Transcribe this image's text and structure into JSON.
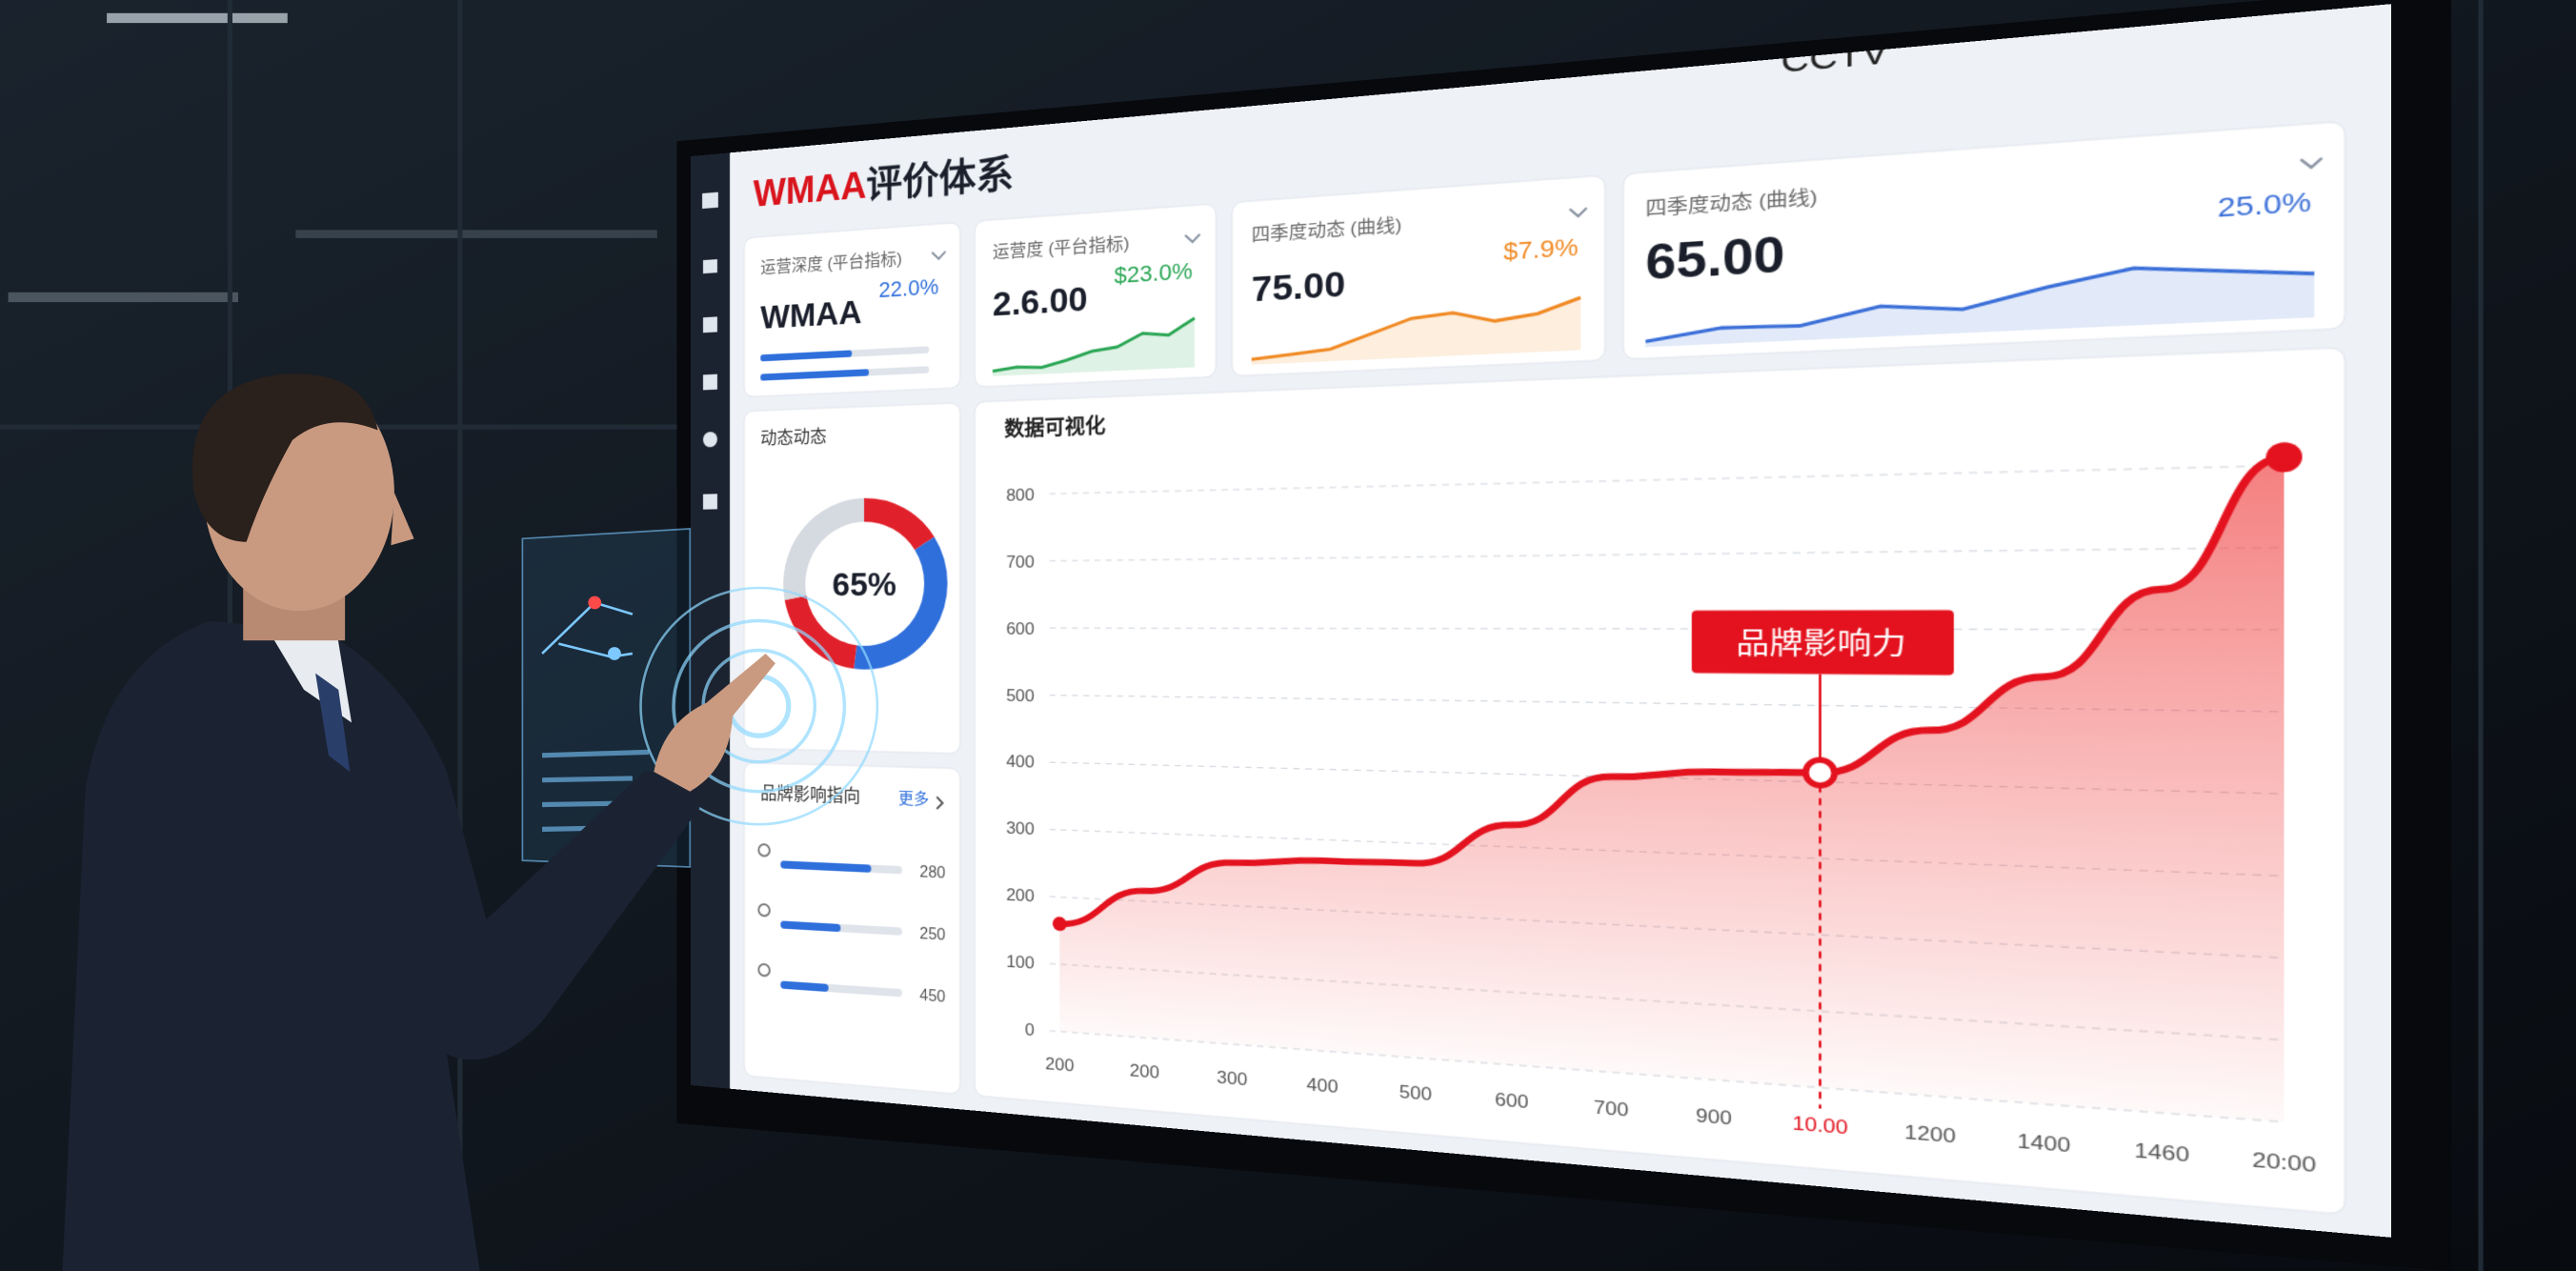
{
  "header": {
    "brand": "WMAA",
    "title": "评价体系",
    "corner_text": "CCTV"
  },
  "cards": [
    {
      "title": "运营深度 (平台指标)",
      "value": "WMAA",
      "change": "22.0%",
      "progress": [
        55,
        65
      ],
      "color": "#2f6fdb"
    },
    {
      "title": "运营度 (平台指标)",
      "value": "2.6.00",
      "change": "$23.0%",
      "sparkline": [
        10,
        12,
        11,
        15,
        20,
        22,
        30,
        28,
        38
      ],
      "color": "#2aa654"
    },
    {
      "title": "四季度动态 (曲线)",
      "value": "75.00",
      "change": "$7.9%",
      "sparkline": [
        8,
        10,
        12,
        20,
        28,
        30,
        24,
        27,
        35
      ],
      "color": "#f08a24"
    },
    {
      "title": "四季度动态 (曲线)",
      "value": "65.00",
      "change": "25.0%",
      "sparkline": [
        10,
        16,
        15,
        24,
        20,
        30,
        38,
        34,
        30
      ],
      "color": "#3b6fd8"
    }
  ],
  "donut": {
    "title": "动态动态",
    "center": "65%",
    "segments": [
      {
        "value": 16,
        "color": "#e0212b"
      },
      {
        "value": 36,
        "color": "#2f6fdb"
      },
      {
        "value": 20,
        "color": "#e0212b"
      },
      {
        "value": 28,
        "color": "#d5d9e0"
      }
    ]
  },
  "list": {
    "title": "品牌影响指向",
    "link": "更多",
    "color": "#2f6fdb",
    "rows": [
      {
        "value": 280,
        "progress": 75
      },
      {
        "value": 250,
        "progress": 50
      },
      {
        "value": 450,
        "progress": 40
      }
    ]
  },
  "chart_data": {
    "type": "line",
    "title": "数据可视化",
    "categories": [
      "200",
      "200",
      "300",
      "400",
      "500",
      "600",
      "700",
      "900",
      "10.00",
      "1200",
      "1400",
      "1460",
      "20:00"
    ],
    "values": [
      160,
      215,
      262,
      270,
      272,
      330,
      400,
      410,
      412,
      470,
      540,
      650,
      810
    ],
    "color": "#e3121e",
    "ylim": [
      0,
      850
    ],
    "yticks": [
      0,
      100,
      200,
      300,
      400,
      500,
      600,
      700,
      800
    ],
    "grid": true,
    "annotation": {
      "text": "品牌影响力",
      "x": "10.00"
    }
  }
}
